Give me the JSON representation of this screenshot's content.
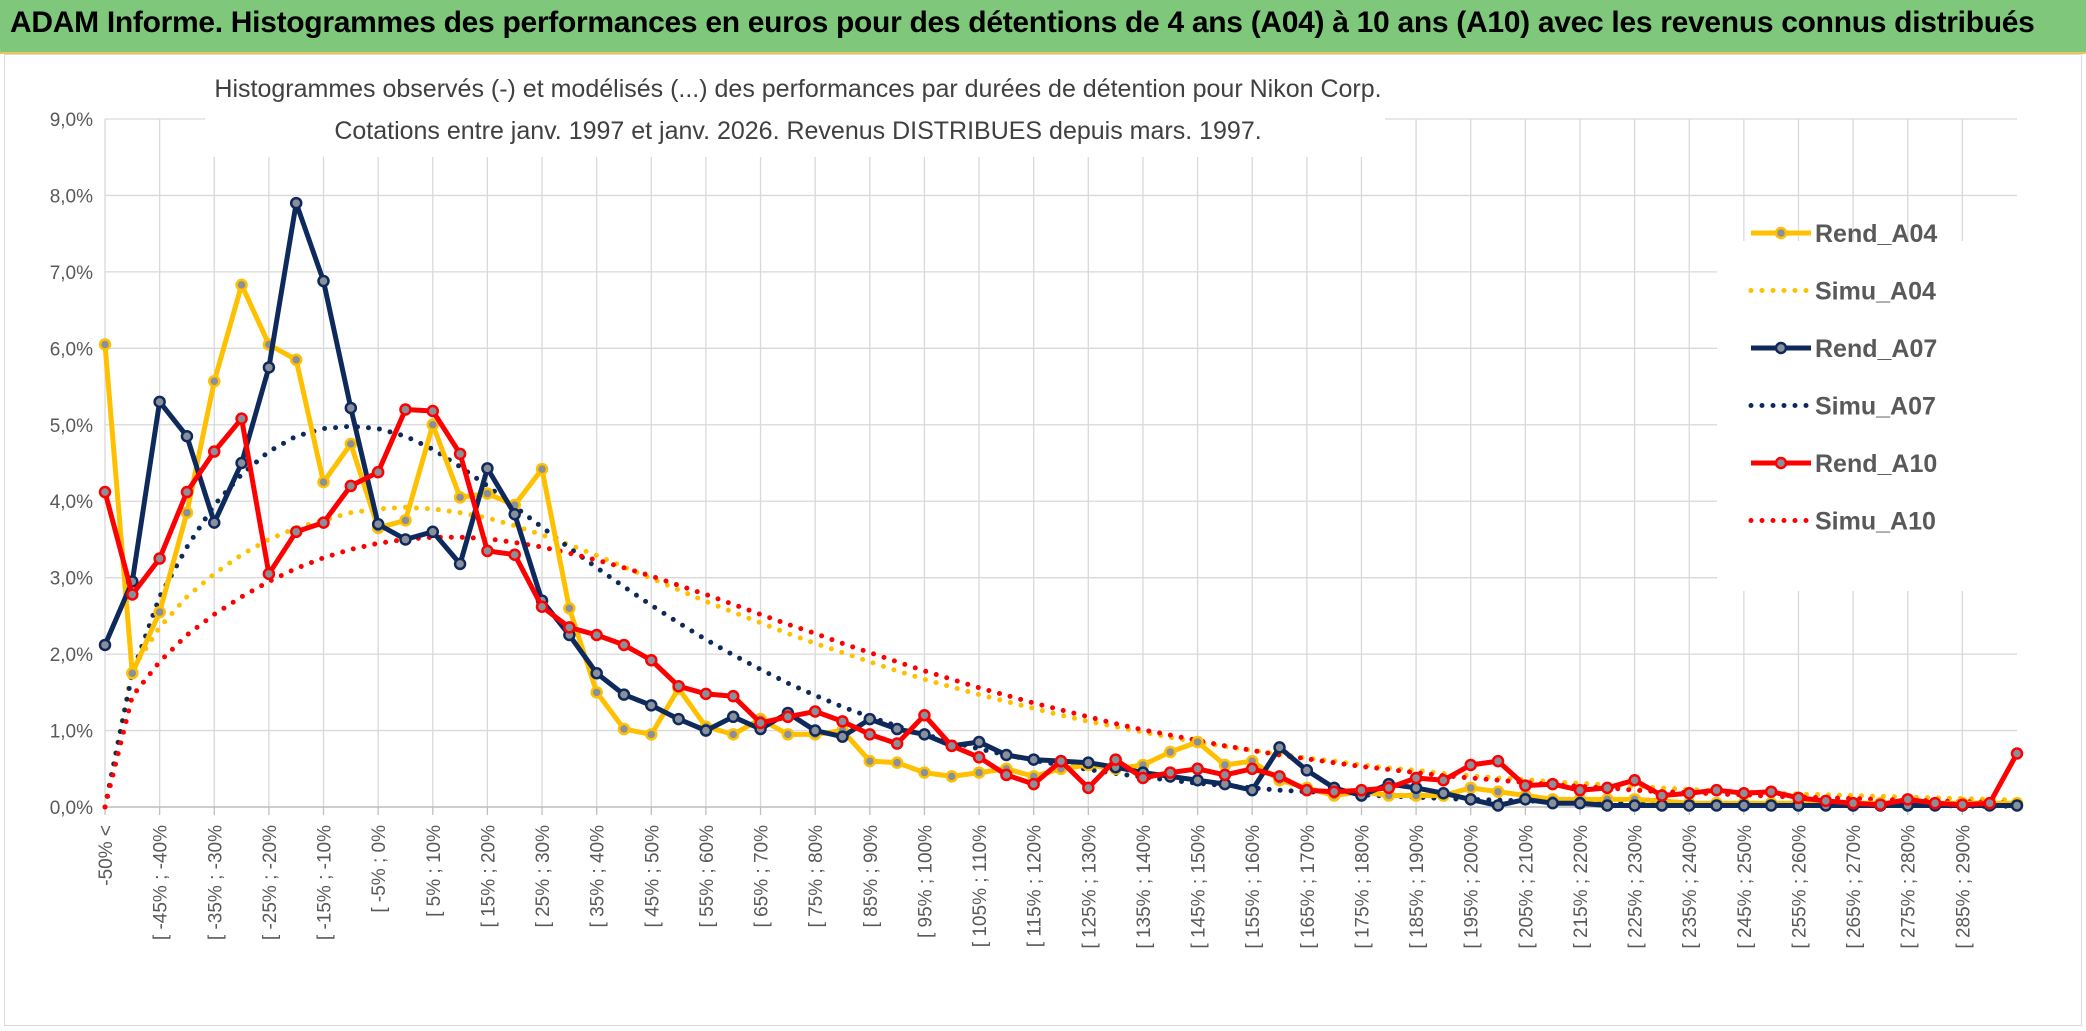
{
  "banner": {
    "title": "ADAM Informe. Histogrammes des performances en euros pour des détentions de 4 ans (A04) à 10 ans (A10) avec les revenus connus distribués"
  },
  "colors": {
    "A04": "#ffc000",
    "A07": "#0e2a5c",
    "A10": "#ff0000",
    "banner": "#7ec77b",
    "grid": "#d9d9d9"
  },
  "chart_data": {
    "type": "line",
    "title": [
      "Histogrammes observés (-) et modélisés (...) des performances par durées de détention pour Nikon Corp.",
      "Cotations entre janv. 1997 et janv. 2026. Revenus DISTRIBUES depuis mars. 1997."
    ],
    "ylim": [
      0,
      9
    ],
    "yticks": [
      "0,0%",
      "1,0%",
      "2,0%",
      "3,0%",
      "4,0%",
      "5,0%",
      "6,0%",
      "7,0%",
      "8,0%",
      "9,0%"
    ],
    "xlabels": [
      "-50% <",
      "[ -45% ; -40%",
      "[ -35% ; -30%",
      "[ -25% ; -20%",
      "[ -15% ; -10%",
      "[ -5% ; 0%",
      "[ 5% ; 10%",
      "[ 15% ; 20%",
      "[ 25% ; 30%",
      "[ 35% ; 40%",
      "[ 45% ; 50%",
      "[ 55% ; 60%",
      "[ 65% ; 70%",
      "[ 75% ; 80%",
      "[ 85% ; 90%",
      "[ 95% ; 100%",
      "[ 105% ; 110%",
      "[ 115% ; 120%",
      "[ 125% ; 130%",
      "[ 135% ; 140%",
      "[ 145% ; 150%",
      "[ 155% ; 160%",
      "[ 165% ; 170%",
      "[ 175% ; 180%",
      "[ 185% ; 190%",
      "[ 195% ; 200%",
      "[ 205% ; 210%",
      "[ 215% ; 220%",
      "[ 225% ; 230%",
      "[ 235% ; 240%",
      "[ 245% ; 250%",
      "[ 255% ; 260%",
      "[ 265% ; 270%",
      "[ 275% ; 280%",
      "[ 285% ; 290%"
    ],
    "series": [
      {
        "name": "Rend_A04",
        "style": "solid",
        "color": "#ffc000",
        "values": [
          6.05,
          1.75,
          2.55,
          3.85,
          5.57,
          6.83,
          6.05,
          5.85,
          4.25,
          4.75,
          3.65,
          3.75,
          5.0,
          4.05,
          4.1,
          3.95,
          4.42,
          2.6,
          1.5,
          1.02,
          0.95,
          1.55,
          1.05,
          0.95,
          1.15,
          0.95,
          0.95,
          1.0,
          0.6,
          0.58,
          0.45,
          0.4,
          0.45,
          0.5,
          0.4,
          0.5,
          0.55,
          0.5,
          0.55,
          0.72,
          0.85,
          0.55,
          0.6,
          0.35,
          0.25,
          0.15,
          0.2,
          0.15,
          0.15,
          0.15,
          0.25,
          0.2,
          0.15,
          0.1,
          0.1,
          0.1,
          0.1,
          0.08,
          0.05,
          0.05,
          0.05,
          0.05,
          0.05,
          0.05,
          0.05,
          0.05,
          0.05,
          0.05,
          0.05,
          0.05,
          0.05
        ]
      },
      {
        "name": "Simu_A04",
        "style": "dotted",
        "color": "#ffc000",
        "values": [
          0.0,
          1.8,
          2.35,
          2.75,
          3.05,
          3.3,
          3.5,
          3.65,
          3.75,
          3.85,
          3.9,
          3.92,
          3.9,
          3.85,
          3.78,
          3.68,
          3.56,
          3.43,
          3.29,
          3.14,
          2.99,
          2.84,
          2.69,
          2.55,
          2.41,
          2.27,
          2.14,
          2.02,
          1.9,
          1.78,
          1.67,
          1.57,
          1.47,
          1.38,
          1.29,
          1.2,
          1.12,
          1.05,
          0.98,
          0.91,
          0.85,
          0.79,
          0.74,
          0.69,
          0.64,
          0.6,
          0.55,
          0.51,
          0.48,
          0.44,
          0.41,
          0.38,
          0.36,
          0.33,
          0.31,
          0.29,
          0.27,
          0.25,
          0.23,
          0.21,
          0.2,
          0.18,
          0.17,
          0.16,
          0.15,
          0.14,
          0.13,
          0.12,
          0.11,
          0.1,
          0.09
        ]
      },
      {
        "name": "Rend_A07",
        "style": "solid",
        "color": "#0e2a5c",
        "values": [
          2.12,
          2.95,
          5.3,
          4.85,
          3.72,
          4.5,
          5.75,
          7.9,
          6.88,
          5.22,
          3.7,
          3.5,
          3.6,
          3.18,
          4.43,
          3.83,
          2.7,
          2.25,
          1.75,
          1.47,
          1.33,
          1.15,
          1.0,
          1.18,
          1.02,
          1.23,
          1.0,
          0.92,
          1.15,
          1.02,
          0.95,
          0.8,
          0.85,
          0.68,
          0.62,
          0.6,
          0.58,
          0.52,
          0.45,
          0.4,
          0.35,
          0.3,
          0.22,
          0.78,
          0.48,
          0.25,
          0.15,
          0.3,
          0.25,
          0.18,
          0.1,
          0.02,
          0.1,
          0.05,
          0.05,
          0.02,
          0.02,
          0.02,
          0.02,
          0.02,
          0.02,
          0.02,
          0.02,
          0.02,
          0.02,
          0.02,
          0.02,
          0.02,
          0.02,
          0.02,
          0.02
        ]
      },
      {
        "name": "Simu_A07",
        "style": "dotted",
        "color": "#0e2a5c",
        "values": [
          0.0,
          1.75,
          2.75,
          3.4,
          3.95,
          4.35,
          4.65,
          4.85,
          4.95,
          4.98,
          4.95,
          4.85,
          4.68,
          4.45,
          4.2,
          3.93,
          3.66,
          3.39,
          3.13,
          2.88,
          2.64,
          2.41,
          2.19,
          1.99,
          1.8,
          1.62,
          1.46,
          1.31,
          1.18,
          1.06,
          0.95,
          0.85,
          0.76,
          0.68,
          0.61,
          0.55,
          0.49,
          0.44,
          0.39,
          0.35,
          0.31,
          0.28,
          0.25,
          0.22,
          0.2,
          0.18,
          0.16,
          0.14,
          0.13,
          0.11,
          0.1,
          0.09,
          0.08,
          0.07,
          0.06,
          0.06,
          0.05,
          0.05,
          0.04,
          0.04,
          0.03,
          0.03,
          0.03,
          0.02,
          0.02,
          0.02,
          0.02,
          0.02,
          0.01,
          0.01,
          0.01
        ]
      },
      {
        "name": "Rend_A10",
        "style": "solid",
        "color": "#ff0000",
        "values": [
          4.12,
          2.78,
          3.25,
          4.12,
          4.65,
          5.08,
          3.05,
          3.6,
          3.72,
          4.2,
          4.38,
          5.2,
          5.18,
          4.62,
          3.35,
          3.3,
          2.62,
          2.35,
          2.25,
          2.12,
          1.92,
          1.58,
          1.48,
          1.45,
          1.1,
          1.18,
          1.25,
          1.12,
          0.95,
          0.83,
          1.2,
          0.8,
          0.65,
          0.42,
          0.3,
          0.6,
          0.25,
          0.62,
          0.38,
          0.45,
          0.5,
          0.42,
          0.5,
          0.4,
          0.22,
          0.2,
          0.22,
          0.25,
          0.38,
          0.35,
          0.55,
          0.6,
          0.28,
          0.3,
          0.22,
          0.25,
          0.35,
          0.15,
          0.18,
          0.22,
          0.18,
          0.2,
          0.12,
          0.08,
          0.05,
          0.03,
          0.1,
          0.05,
          0.03,
          0.05,
          0.7
        ]
      },
      {
        "name": "Simu_A10",
        "style": "dotted",
        "color": "#ff0000",
        "values": [
          0.0,
          1.45,
          1.9,
          2.25,
          2.52,
          2.75,
          2.95,
          3.12,
          3.26,
          3.37,
          3.45,
          3.5,
          3.53,
          3.53,
          3.51,
          3.46,
          3.4,
          3.32,
          3.23,
          3.13,
          3.02,
          2.9,
          2.78,
          2.65,
          2.52,
          2.39,
          2.27,
          2.14,
          2.02,
          1.9,
          1.78,
          1.67,
          1.56,
          1.46,
          1.36,
          1.27,
          1.18,
          1.09,
          1.01,
          0.94,
          0.87,
          0.8,
          0.74,
          0.68,
          0.63,
          0.58,
          0.53,
          0.49,
          0.45,
          0.41,
          0.38,
          0.35,
          0.32,
          0.29,
          0.27,
          0.25,
          0.22,
          0.2,
          0.19,
          0.17,
          0.16,
          0.14,
          0.13,
          0.12,
          0.11,
          0.1,
          0.09,
          0.08,
          0.07,
          0.06,
          0.05
        ]
      }
    ],
    "legend": [
      "Rend_A04",
      "Simu_A04",
      "Rend_A07",
      "Simu_A07",
      "Rend_A10",
      "Simu_A10"
    ],
    "legend_position": "right",
    "grid": true
  }
}
